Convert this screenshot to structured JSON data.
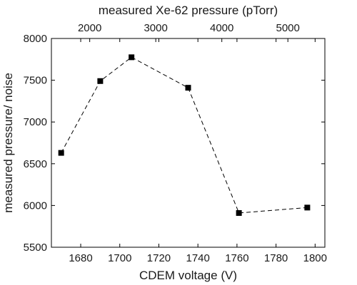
{
  "chart_data": {
    "type": "line",
    "xlabel": "CDEM voltage (V)",
    "ylabel": "measured pressure/ noise",
    "x2label": "measured Xe-62 pressure (pTorr)",
    "xlim": [
      1665,
      1805
    ],
    "ylim": [
      5500,
      8000
    ],
    "x2lim": [
      1420,
      5560
    ],
    "xticks": [
      1680,
      1700,
      1720,
      1740,
      1760,
      1780,
      1800
    ],
    "yticks": [
      5500,
      6000,
      6500,
      7000,
      7500,
      8000
    ],
    "x2ticks": [
      2000,
      3000,
      4000,
      5000
    ],
    "series": [
      {
        "x": [
          1670,
          1690,
          1706,
          1735,
          1761,
          1796
        ],
        "y": [
          6630,
          7490,
          7775,
          7410,
          5910,
          5975
        ],
        "line_style": "dashed",
        "marker": "square",
        "color": "#000000"
      }
    ],
    "grid": false,
    "legend": null
  }
}
